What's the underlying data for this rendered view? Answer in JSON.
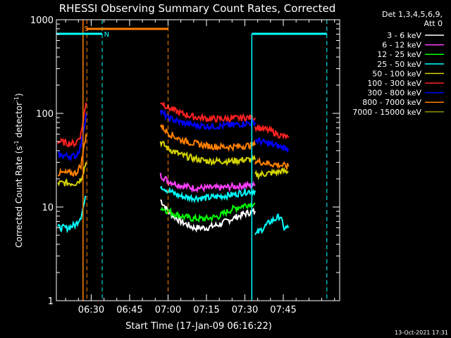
{
  "chart_data": {
    "type": "line",
    "title": "RHESSI Observing Summary Count Rates, Corrected",
    "xlabel": "Start Time (17-Jan-09 06:16:22)",
    "ylabel_prefix": "Corrected Count Rate (s",
    "ylabel_sup1": "-1",
    "ylabel_mid": " detector",
    "ylabel_sup2": "-1",
    "ylabel_suffix": ")",
    "y_scale": "log",
    "ylim": [
      1,
      1000
    ],
    "xlim_minutes": [
      376.4,
      487
    ],
    "x_ticks": [
      {
        "t": 390,
        "label": "06:30"
      },
      {
        "t": 405,
        "label": "06:45"
      },
      {
        "t": 420,
        "label": "07:00"
      },
      {
        "t": 435,
        "label": "07:15"
      },
      {
        "t": 450,
        "label": "07:30"
      },
      {
        "t": 465,
        "label": "07:45"
      }
    ],
    "y_ticks": [
      {
        "v": 1,
        "label": "1"
      },
      {
        "v": 10,
        "label": "10"
      },
      {
        "v": 100,
        "label": "100"
      },
      {
        "v": 1000,
        "label": "1000"
      }
    ],
    "legend_header": [
      "Det 1,3,4,5,6,9,",
      "Att 0"
    ],
    "series": [
      {
        "name": "3 - 6 keV",
        "color": "#ffffff",
        "segments": [
          [
            [
              417,
              12
            ],
            [
              420,
              9
            ],
            [
              425,
              7
            ],
            [
              430,
              6
            ],
            [
              435,
              6
            ],
            [
              440,
              6.5
            ],
            [
              445,
              7.5
            ],
            [
              450,
              8.5
            ],
            [
              454,
              9
            ]
          ]
        ]
      },
      {
        "name": "6 - 12 keV",
        "color": "#ff40ff",
        "segments": [
          [
            [
              417,
              22
            ],
            [
              420,
              19
            ],
            [
              425,
              17
            ],
            [
              430,
              16
            ],
            [
              435,
              16
            ],
            [
              440,
              16
            ],
            [
              445,
              16.5
            ],
            [
              450,
              17
            ],
            [
              454,
              17
            ]
          ]
        ]
      },
      {
        "name": "12 - 25 keV",
        "color": "#00ff00",
        "segments": [
          [
            [
              417,
              10
            ],
            [
              420,
              9
            ],
            [
              425,
              8
            ],
            [
              430,
              7.5
            ],
            [
              435,
              7.5
            ],
            [
              440,
              8
            ],
            [
              445,
              9.5
            ],
            [
              450,
              10.5
            ],
            [
              454,
              11
            ]
          ]
        ]
      },
      {
        "name": "25 - 50 keV",
        "color": "#00ffff",
        "segments": [
          [
            [
              377,
              6
            ],
            [
              381,
              6
            ],
            [
              384,
              6.5
            ],
            [
              386,
              8
            ],
            [
              388,
              13
            ]
          ],
          [
            [
              417,
              17
            ],
            [
              420,
              15
            ],
            [
              425,
              13
            ],
            [
              430,
              12.5
            ],
            [
              435,
              12.5
            ],
            [
              440,
              13
            ],
            [
              445,
              13.5
            ],
            [
              450,
              14.5
            ],
            [
              454,
              15
            ]
          ],
          [
            [
              454,
              5
            ],
            [
              460,
              7
            ],
            [
              464,
              8
            ],
            [
              465,
              6
            ],
            [
              467,
              6
            ]
          ]
        ]
      },
      {
        "name": "50 - 100 keV",
        "color": "#d4d400",
        "segments": [
          [
            [
              377,
              18
            ],
            [
              381,
              18
            ],
            [
              384,
              18
            ],
            [
              386,
              20
            ],
            [
              388,
              30
            ]
          ],
          [
            [
              417,
              50
            ],
            [
              420,
              42
            ],
            [
              425,
              36
            ],
            [
              430,
              33
            ],
            [
              435,
              31
            ],
            [
              440,
              31
            ],
            [
              445,
              31
            ],
            [
              450,
              32
            ],
            [
              454,
              32
            ]
          ],
          [
            [
              454,
              22
            ],
            [
              460,
              23
            ],
            [
              464,
              24
            ],
            [
              467,
              24
            ]
          ]
        ]
      },
      {
        "name": "100 - 300 keV",
        "color": "#ff2020",
        "segments": [
          [
            [
              377,
              50
            ],
            [
              381,
              48
            ],
            [
              384,
              48
            ],
            [
              386,
              60
            ],
            [
              388,
              130
            ]
          ],
          [
            [
              417,
              135
            ],
            [
              420,
              115
            ],
            [
              425,
              100
            ],
            [
              430,
              92
            ],
            [
              435,
              88
            ],
            [
              440,
              87
            ],
            [
              445,
              88
            ],
            [
              450,
              90
            ],
            [
              454,
              90
            ]
          ],
          [
            [
              454,
              72
            ],
            [
              460,
              65
            ],
            [
              464,
              58
            ],
            [
              467,
              55
            ]
          ]
        ]
      },
      {
        "name": "300 - 800 keV",
        "color": "#0000ff",
        "segments": [
          [
            [
              377,
              36
            ],
            [
              381,
              35
            ],
            [
              384,
              35
            ],
            [
              386,
              45
            ],
            [
              388,
              100
            ]
          ],
          [
            [
              417,
              105
            ],
            [
              420,
              90
            ],
            [
              425,
              80
            ],
            [
              430,
              75
            ],
            [
              435,
              73
            ],
            [
              440,
              73
            ],
            [
              445,
              75
            ],
            [
              450,
              78
            ],
            [
              454,
              80
            ]
          ],
          [
            [
              454,
              52
            ],
            [
              460,
              47
            ],
            [
              464,
              44
            ],
            [
              467,
              42
            ]
          ]
        ]
      },
      {
        "name": "800 - 7000 keV",
        "color": "#ff8000",
        "segments": [
          [
            [
              377,
              23
            ],
            [
              381,
              23
            ],
            [
              384,
              23
            ],
            [
              386,
              28
            ],
            [
              388,
              60
            ]
          ],
          [
            [
              417,
              75
            ],
            [
              420,
              62
            ],
            [
              425,
              52
            ],
            [
              430,
              48
            ],
            [
              435,
              45
            ],
            [
              440,
              44
            ],
            [
              445,
              44
            ],
            [
              450,
              45
            ],
            [
              454,
              46
            ]
          ],
          [
            [
              454,
              31
            ],
            [
              460,
              29
            ],
            [
              464,
              28
            ],
            [
              467,
              27
            ]
          ]
        ]
      },
      {
        "name": "7000 - 15000 keV",
        "color": "#909000",
        "segments": []
      }
    ],
    "annotations": [
      "S",
      "N"
    ]
  },
  "footer_timestamp": "13-Oct-2021 17:31"
}
